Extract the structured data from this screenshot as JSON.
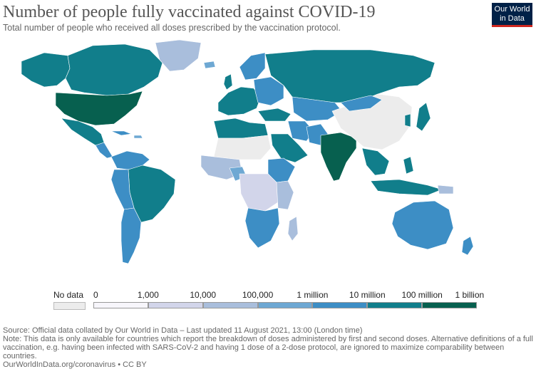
{
  "header": {
    "title": "Number of people fully vaccinated against COVID-19",
    "subtitle": "Total number of people who received all doses prescribed by the vaccination protocol."
  },
  "logo": {
    "line1": "Our World",
    "line2": "in Data"
  },
  "legend": {
    "no_data_label": "No data",
    "bins": [
      {
        "from": "0",
        "to": "1,000",
        "color": "#f7f6fb"
      },
      {
        "from": "1,000",
        "to": "10,000",
        "color": "#d2d5ea"
      },
      {
        "from": "10,000",
        "to": "100,000",
        "color": "#a9bedc"
      },
      {
        "from": "100,000",
        "to": "1 million",
        "color": "#6ea8d3"
      },
      {
        "from": "1 million",
        "to": "10 million",
        "color": "#3d8ec5"
      },
      {
        "from": "10 million",
        "to": "100 million",
        "color": "#117e8b"
      },
      {
        "from": "100 million",
        "to": "1 billion",
        "color": "#07604f"
      }
    ],
    "tick_labels": [
      "0",
      "1,000",
      "10,000",
      "100,000",
      "1 million",
      "10 million",
      "100 million",
      "1 billion"
    ],
    "no_data_color": "#ececec"
  },
  "footer": {
    "source": "Source: Official data collated by Our World in Data – Last updated 11 August 2021, 13:00 (London time)",
    "note": "Note: This data is only available for countries which report the breakdown of doses administered by first and second doses. Alternative definitions of a full vaccination, e.g. having been infected with SARS-CoV-2 and having 1 dose of a 2-dose protocol, are ignored to maximize comparability between countries.",
    "url": "OurWorldInData.org/coronavirus • CC BY"
  },
  "colors": {
    "no_data": "#ececec",
    "under_1k": "#f7f6fb",
    "k1_10k": "#d2d5ea",
    "k10_100k": "#a9bedc",
    "k100_1m": "#6ea8d3",
    "m1_10m": "#3d8ec5",
    "m10_100m": "#117e8b",
    "m100_1b": "#07604f"
  }
}
